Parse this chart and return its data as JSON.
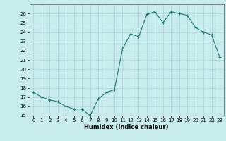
{
  "title": "",
  "xlabel": "Humidex (Indice chaleur)",
  "ylabel": "",
  "x": [
    0,
    1,
    2,
    3,
    4,
    5,
    6,
    7,
    8,
    9,
    10,
    11,
    12,
    13,
    14,
    15,
    16,
    17,
    18,
    19,
    20,
    21,
    22,
    23
  ],
  "y": [
    17.5,
    17.0,
    16.7,
    16.5,
    16.0,
    15.7,
    15.7,
    15.0,
    16.8,
    17.5,
    17.8,
    22.2,
    23.8,
    23.5,
    25.9,
    26.2,
    25.0,
    26.2,
    26.0,
    25.8,
    24.5,
    24.0,
    23.7,
    21.3
  ],
  "line_color": "#1a7a6e",
  "bg_color": "#c8ecec",
  "grid_color": "#aad4d4",
  "ylim": [
    15,
    27
  ],
  "xlim": [
    -0.5,
    23.5
  ],
  "yticks": [
    15,
    16,
    17,
    18,
    19,
    20,
    21,
    22,
    23,
    24,
    25,
    26
  ],
  "xticks": [
    0,
    1,
    2,
    3,
    4,
    5,
    6,
    7,
    8,
    9,
    10,
    11,
    12,
    13,
    14,
    15,
    16,
    17,
    18,
    19,
    20,
    21,
    22,
    23
  ],
  "xlabel_fontsize": 6,
  "tick_fontsize": 5,
  "linewidth": 0.8,
  "markersize": 3.5
}
